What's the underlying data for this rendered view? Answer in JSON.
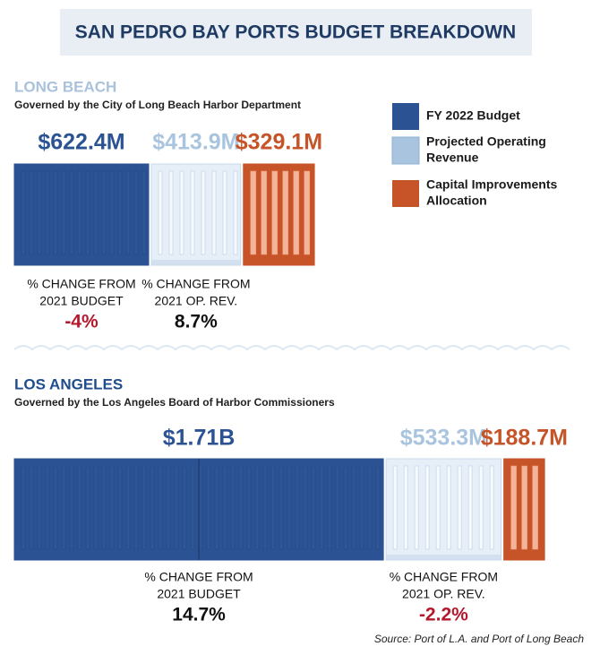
{
  "title": "SAN PEDRO BAY PORTS BUDGET BREAKDOWN",
  "legend": {
    "items": [
      {
        "name": "FY 2022 Budget",
        "color": "#2b5394"
      },
      {
        "name": [
          "Projected Operating",
          "Revenue"
        ],
        "color": "#a9c4de"
      },
      {
        "name": [
          "Capital Improvements",
          "Allocation"
        ],
        "color": "#c65428"
      }
    ]
  },
  "chart_data": [
    {
      "type": "bar",
      "title": "LONG BEACH",
      "subtitle": "Governed by the City of Long Beach Harbor Department",
      "values": [
        622.4,
        413.9,
        329.1
      ],
      "value_labels": [
        "$622.4M",
        "$413.9M",
        "$329.1M"
      ],
      "annotations": [
        {
          "label": [
            "% CHANGE FROM",
            "2021 BUDGET"
          ],
          "value": "-4%",
          "color": "#b5182d"
        },
        {
          "label": [
            "% CHANGE FROM",
            "2021 OP. REV."
          ],
          "value": "8.7%",
          "color": "#111111"
        }
      ]
    },
    {
      "type": "bar",
      "title": "LOS ANGELES",
      "subtitle": "Governed by the Los Angeles Board of Harbor Commissioners",
      "values": [
        1710,
        533.3,
        188.7
      ],
      "value_labels": [
        "$1.71B",
        "$533.3M",
        "$188.7M"
      ],
      "annotations": [
        {
          "label": [
            "% CHANGE FROM",
            "2021 BUDGET"
          ],
          "value": "14.7%",
          "color": "#111111"
        },
        {
          "label": [
            "% CHANGE FROM",
            "2021 OP. REV."
          ],
          "value": "-2.2%",
          "color": "#b5182d"
        }
      ]
    }
  ],
  "source": "Source: Port of L.A. and Port of Long Beach"
}
